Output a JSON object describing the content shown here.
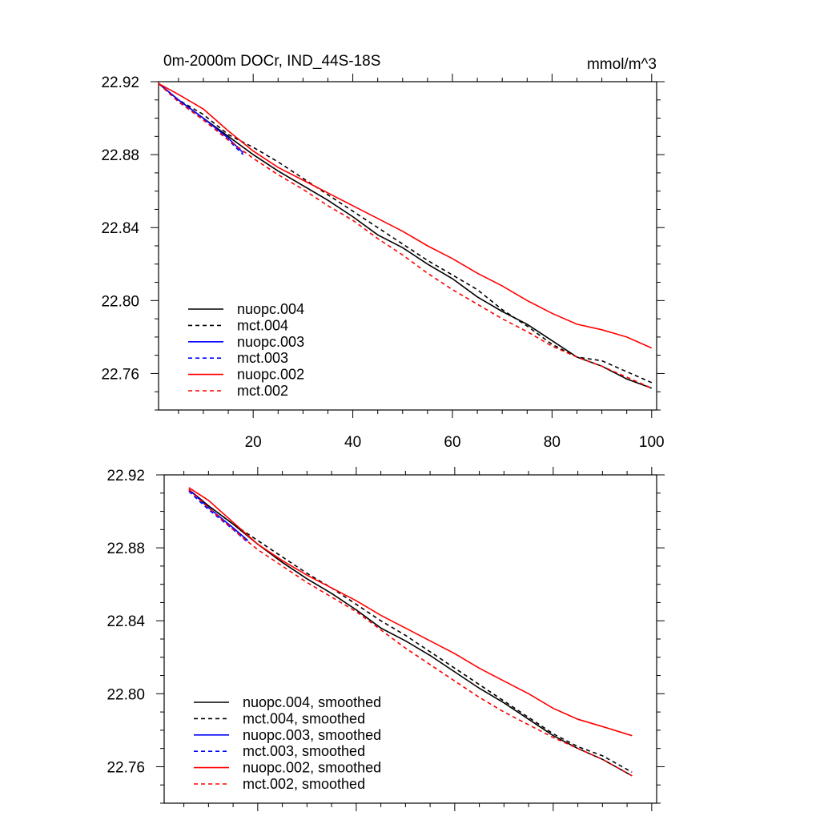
{
  "chart_data": [
    {
      "type": "line",
      "title": "0m-2000m DOCr, IND_44S-18S",
      "units": "mmol/m^3",
      "xlim": [
        1,
        101
      ],
      "ylim": [
        22.74,
        22.92
      ],
      "x_ticks": [
        "20",
        "40",
        "60",
        "80",
        "100"
      ],
      "y_ticks": [
        "22.92",
        "22.88",
        "22.84",
        "22.80",
        "22.76"
      ],
      "grid": false,
      "legend_position": "bottom-left",
      "series": [
        {
          "name": "nuopc.004",
          "color": "#000000",
          "dash": "solid",
          "x": [
            1,
            5,
            10,
            15,
            20,
            25,
            30,
            35,
            40,
            45,
            50,
            55,
            60,
            65,
            70,
            75,
            80,
            85,
            90,
            95,
            100
          ],
          "y": [
            22.919,
            22.91,
            22.9,
            22.89,
            22.88,
            22.871,
            22.863,
            22.855,
            22.846,
            22.836,
            22.829,
            22.82,
            22.812,
            22.802,
            22.794,
            22.787,
            22.778,
            22.769,
            22.764,
            22.757,
            22.752
          ]
        },
        {
          "name": "mct.004",
          "color": "#000000",
          "dash": "dashed",
          "x": [
            1,
            5,
            10,
            15,
            20,
            25,
            30,
            35,
            40,
            45,
            50,
            55,
            60,
            65,
            70,
            75,
            80,
            85,
            90,
            95,
            100
          ],
          "y": [
            22.919,
            22.91,
            22.902,
            22.891,
            22.884,
            22.876,
            22.867,
            22.858,
            22.849,
            22.84,
            22.831,
            22.822,
            22.814,
            22.806,
            22.795,
            22.786,
            22.776,
            22.769,
            22.767,
            22.761,
            22.755
          ]
        },
        {
          "name": "nuopc.003",
          "color": "#0000ff",
          "dash": "solid",
          "x": [
            1,
            5,
            10,
            15,
            18
          ],
          "y": [
            22.919,
            22.91,
            22.9,
            22.889,
            22.881
          ]
        },
        {
          "name": "mct.003",
          "color": "#0000ff",
          "dash": "dashed",
          "x": [
            1,
            5,
            10,
            15,
            18
          ],
          "y": [
            22.919,
            22.909,
            22.899,
            22.888,
            22.88
          ]
        },
        {
          "name": "nuopc.002",
          "color": "#ff0000",
          "dash": "solid",
          "x": [
            1,
            5,
            10,
            15,
            20,
            25,
            30,
            35,
            40,
            45,
            50,
            55,
            60,
            65,
            70,
            75,
            80,
            85,
            90,
            95,
            100
          ],
          "y": [
            22.919,
            22.913,
            22.905,
            22.893,
            22.882,
            22.873,
            22.866,
            22.859,
            22.852,
            22.845,
            22.838,
            22.83,
            22.823,
            22.815,
            22.808,
            22.8,
            22.793,
            22.787,
            22.784,
            22.78,
            22.774
          ]
        },
        {
          "name": "mct.002",
          "color": "#ff0000",
          "dash": "dashed",
          "x": [
            1,
            5,
            10,
            15,
            20,
            25,
            30,
            35,
            40,
            45,
            50,
            55,
            60,
            65,
            70,
            75,
            80,
            85,
            90,
            95,
            100
          ],
          "y": [
            22.919,
            22.909,
            22.899,
            22.888,
            22.878,
            22.869,
            22.861,
            22.852,
            22.844,
            22.834,
            22.825,
            22.815,
            22.806,
            22.798,
            22.79,
            22.783,
            22.775,
            22.769,
            22.764,
            22.758,
            22.752
          ]
        }
      ]
    },
    {
      "type": "line",
      "xlim": [
        1,
        101
      ],
      "ylim": [
        22.74,
        22.92
      ],
      "y_ticks": [
        "22.92",
        "22.88",
        "22.84",
        "22.80",
        "22.76"
      ],
      "grid": false,
      "legend_position": "bottom-left",
      "series": [
        {
          "name": "nuopc.004, smoothed",
          "color": "#000000",
          "dash": "solid",
          "x": [
            6,
            10,
            15,
            20,
            25,
            30,
            35,
            40,
            45,
            50,
            55,
            60,
            65,
            70,
            75,
            80,
            85,
            90,
            96
          ],
          "y": [
            22.912,
            22.903,
            22.893,
            22.882,
            22.872,
            22.863,
            22.855,
            22.846,
            22.836,
            22.829,
            22.821,
            22.812,
            22.803,
            22.795,
            22.786,
            22.777,
            22.77,
            22.764,
            22.755
          ]
        },
        {
          "name": "mct.004, smoothed",
          "color": "#000000",
          "dash": "dashed",
          "x": [
            6,
            10,
            15,
            20,
            25,
            30,
            35,
            40,
            45,
            50,
            55,
            60,
            65,
            70,
            75,
            80,
            85,
            90,
            96
          ],
          "y": [
            22.912,
            22.903,
            22.893,
            22.884,
            22.875,
            22.866,
            22.858,
            22.849,
            22.84,
            22.832,
            22.823,
            22.814,
            22.805,
            22.796,
            22.787,
            22.778,
            22.771,
            22.766,
            22.757
          ]
        },
        {
          "name": "nuopc.003, smoothed",
          "color": "#0000ff",
          "dash": "solid",
          "x": [
            6,
            10,
            15,
            18
          ],
          "y": [
            22.912,
            22.902,
            22.891,
            22.884
          ]
        },
        {
          "name": "mct.003, smoothed",
          "color": "#0000ff",
          "dash": "dashed",
          "x": [
            6,
            10,
            15,
            18
          ],
          "y": [
            22.911,
            22.901,
            22.89,
            22.883
          ]
        },
        {
          "name": "nuopc.002, smoothed",
          "color": "#ff0000",
          "dash": "solid",
          "x": [
            6,
            10,
            15,
            20,
            25,
            30,
            35,
            40,
            45,
            50,
            55,
            60,
            65,
            70,
            75,
            80,
            85,
            90,
            96
          ],
          "y": [
            22.913,
            22.906,
            22.894,
            22.882,
            22.873,
            22.865,
            22.858,
            22.851,
            22.843,
            22.836,
            22.829,
            22.822,
            22.814,
            22.807,
            22.8,
            22.792,
            22.786,
            22.782,
            22.777
          ]
        },
        {
          "name": "mct.002, smoothed",
          "color": "#ff0000",
          "dash": "dashed",
          "x": [
            6,
            10,
            15,
            20,
            25,
            30,
            35,
            40,
            45,
            50,
            55,
            60,
            65,
            70,
            75,
            80,
            85,
            90,
            96
          ],
          "y": [
            22.912,
            22.902,
            22.89,
            22.879,
            22.87,
            22.861,
            22.853,
            22.845,
            22.835,
            22.825,
            22.816,
            22.807,
            22.798,
            22.79,
            22.783,
            22.776,
            22.77,
            22.764,
            22.755
          ]
        }
      ]
    }
  ]
}
